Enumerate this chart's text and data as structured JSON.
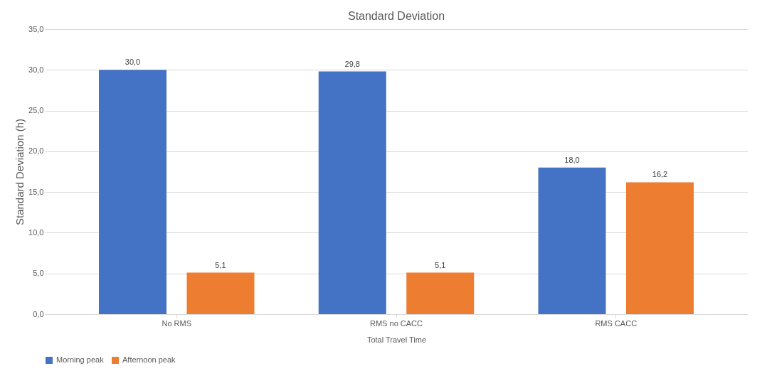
{
  "chart_data": {
    "type": "bar",
    "title": "Standard Deviation",
    "xlabel": "Total Travel Time",
    "ylabel": "Standard Deviation (h)",
    "categories": [
      "No RMS",
      "RMS no CACC",
      "RMS CACC"
    ],
    "series": [
      {
        "name": "Morning peak",
        "color": "#4472c4",
        "values": [
          30.0,
          29.8,
          18.0
        ],
        "value_labels": [
          "30,0",
          "29,8",
          "18,0"
        ]
      },
      {
        "name": "Afternoon peak",
        "color": "#ed7d31",
        "values": [
          5.1,
          5.1,
          16.2
        ],
        "value_labels": [
          "5,1",
          "5,1",
          "16,2"
        ]
      }
    ],
    "ylim": [
      0,
      35
    ],
    "yticks": [
      {
        "value": 0,
        "label": "0,0"
      },
      {
        "value": 5,
        "label": "5,0"
      },
      {
        "value": 10,
        "label": "10,0"
      },
      {
        "value": 15,
        "label": "15,0"
      },
      {
        "value": 20,
        "label": "20,0"
      },
      {
        "value": 25,
        "label": "25,0"
      },
      {
        "value": 30,
        "label": "30,0"
      },
      {
        "value": 35,
        "label": "35,0"
      }
    ],
    "grid": "y",
    "legend": "bottom"
  }
}
